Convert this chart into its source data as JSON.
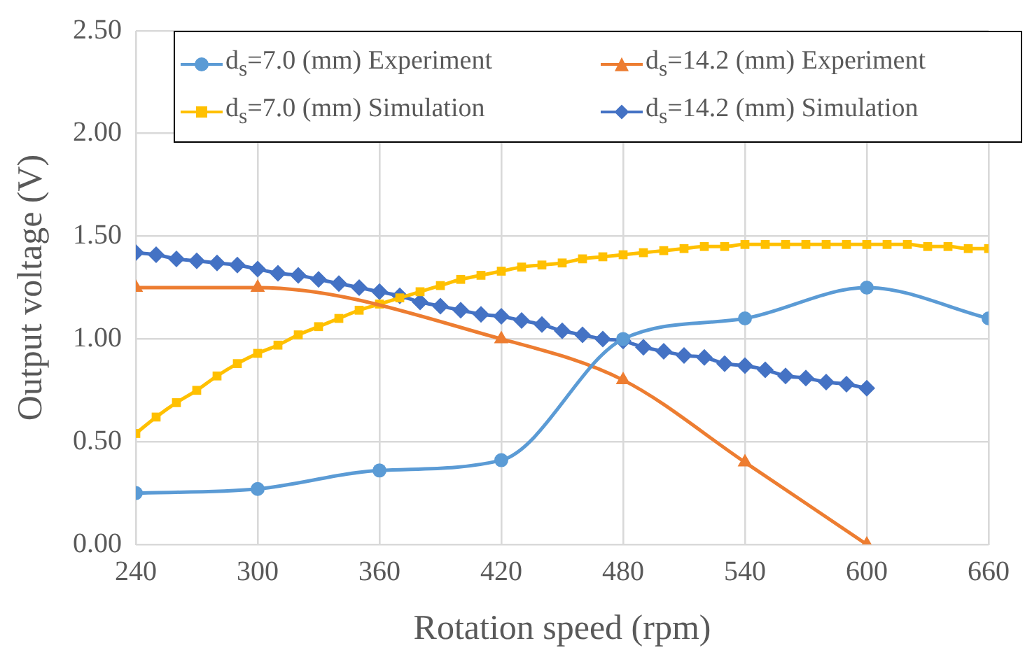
{
  "chart_data": {
    "type": "line",
    "xlabel": "Rotation speed (rpm)",
    "ylabel": "Output voltage (V)",
    "xlim": [
      240,
      660
    ],
    "xticks": [
      240,
      300,
      360,
      420,
      480,
      540,
      600,
      660
    ],
    "ylim": [
      0,
      2.5
    ],
    "yticks": [
      {
        "value": 0,
        "label": "0.00"
      },
      {
        "value": 0.5,
        "label": "0.50"
      },
      {
        "value": 1,
        "label": "1.00"
      },
      {
        "value": 1.5,
        "label": "1.50"
      },
      {
        "value": 2,
        "label": "2.00"
      },
      {
        "value": 2.5,
        "label": "2.50"
      }
    ],
    "grid": true,
    "legend": "top",
    "series": [
      {
        "name": "d$_{s}$=7.0 (mm) Experiment",
        "color": "#5b9bd5",
        "marker": "circle",
        "x": [
          240,
          300,
          360,
          420,
          480,
          540,
          600,
          660
        ],
        "values": [
          0.25,
          0.27,
          0.36,
          0.41,
          1.0,
          1.1,
          1.25,
          1.1
        ]
      },
      {
        "name": "d$_{s}$=14.2 (mm) Experiment",
        "color": "#ed7d31",
        "marker": "triangle",
        "x": [
          240,
          300,
          420,
          480,
          540,
          600
        ],
        "values": [
          1.25,
          1.25,
          1.0,
          0.8,
          0.4,
          0.0
        ]
      },
      {
        "name": "d$_{s}$=7.0 (mm) Simulation",
        "color": "#ffc000",
        "marker": "square",
        "x": [
          240,
          250,
          260,
          270,
          280,
          290,
          300,
          310,
          320,
          330,
          340,
          350,
          360,
          370,
          380,
          390,
          400,
          410,
          420,
          430,
          440,
          450,
          460,
          470,
          480,
          490,
          500,
          510,
          520,
          530,
          540,
          550,
          560,
          570,
          580,
          590,
          600,
          610,
          620,
          630,
          640,
          650,
          660
        ],
        "values": [
          0.54,
          0.62,
          0.69,
          0.75,
          0.82,
          0.88,
          0.93,
          0.97,
          1.02,
          1.06,
          1.1,
          1.14,
          1.17,
          1.2,
          1.23,
          1.26,
          1.29,
          1.31,
          1.33,
          1.35,
          1.36,
          1.37,
          1.39,
          1.4,
          1.41,
          1.42,
          1.43,
          1.44,
          1.45,
          1.45,
          1.46,
          1.46,
          1.46,
          1.46,
          1.46,
          1.46,
          1.46,
          1.46,
          1.46,
          1.45,
          1.45,
          1.44,
          1.44
        ]
      },
      {
        "name": "d$_{s}$=14.2 (mm) Simulation",
        "color": "#4472c4",
        "marker": "diamond",
        "x": [
          240,
          250,
          260,
          270,
          280,
          290,
          300,
          310,
          320,
          330,
          340,
          350,
          360,
          370,
          380,
          390,
          400,
          410,
          420,
          430,
          440,
          450,
          460,
          470,
          480,
          490,
          500,
          510,
          520,
          530,
          540,
          550,
          560,
          570,
          580,
          590,
          600
        ],
        "values": [
          1.42,
          1.41,
          1.39,
          1.38,
          1.37,
          1.36,
          1.34,
          1.32,
          1.31,
          1.29,
          1.27,
          1.25,
          1.23,
          1.21,
          1.18,
          1.16,
          1.14,
          1.12,
          1.11,
          1.09,
          1.07,
          1.04,
          1.02,
          1.0,
          0.99,
          0.96,
          0.94,
          0.92,
          0.91,
          0.88,
          0.87,
          0.85,
          0.82,
          0.81,
          0.79,
          0.78,
          0.76
        ]
      }
    ]
  }
}
